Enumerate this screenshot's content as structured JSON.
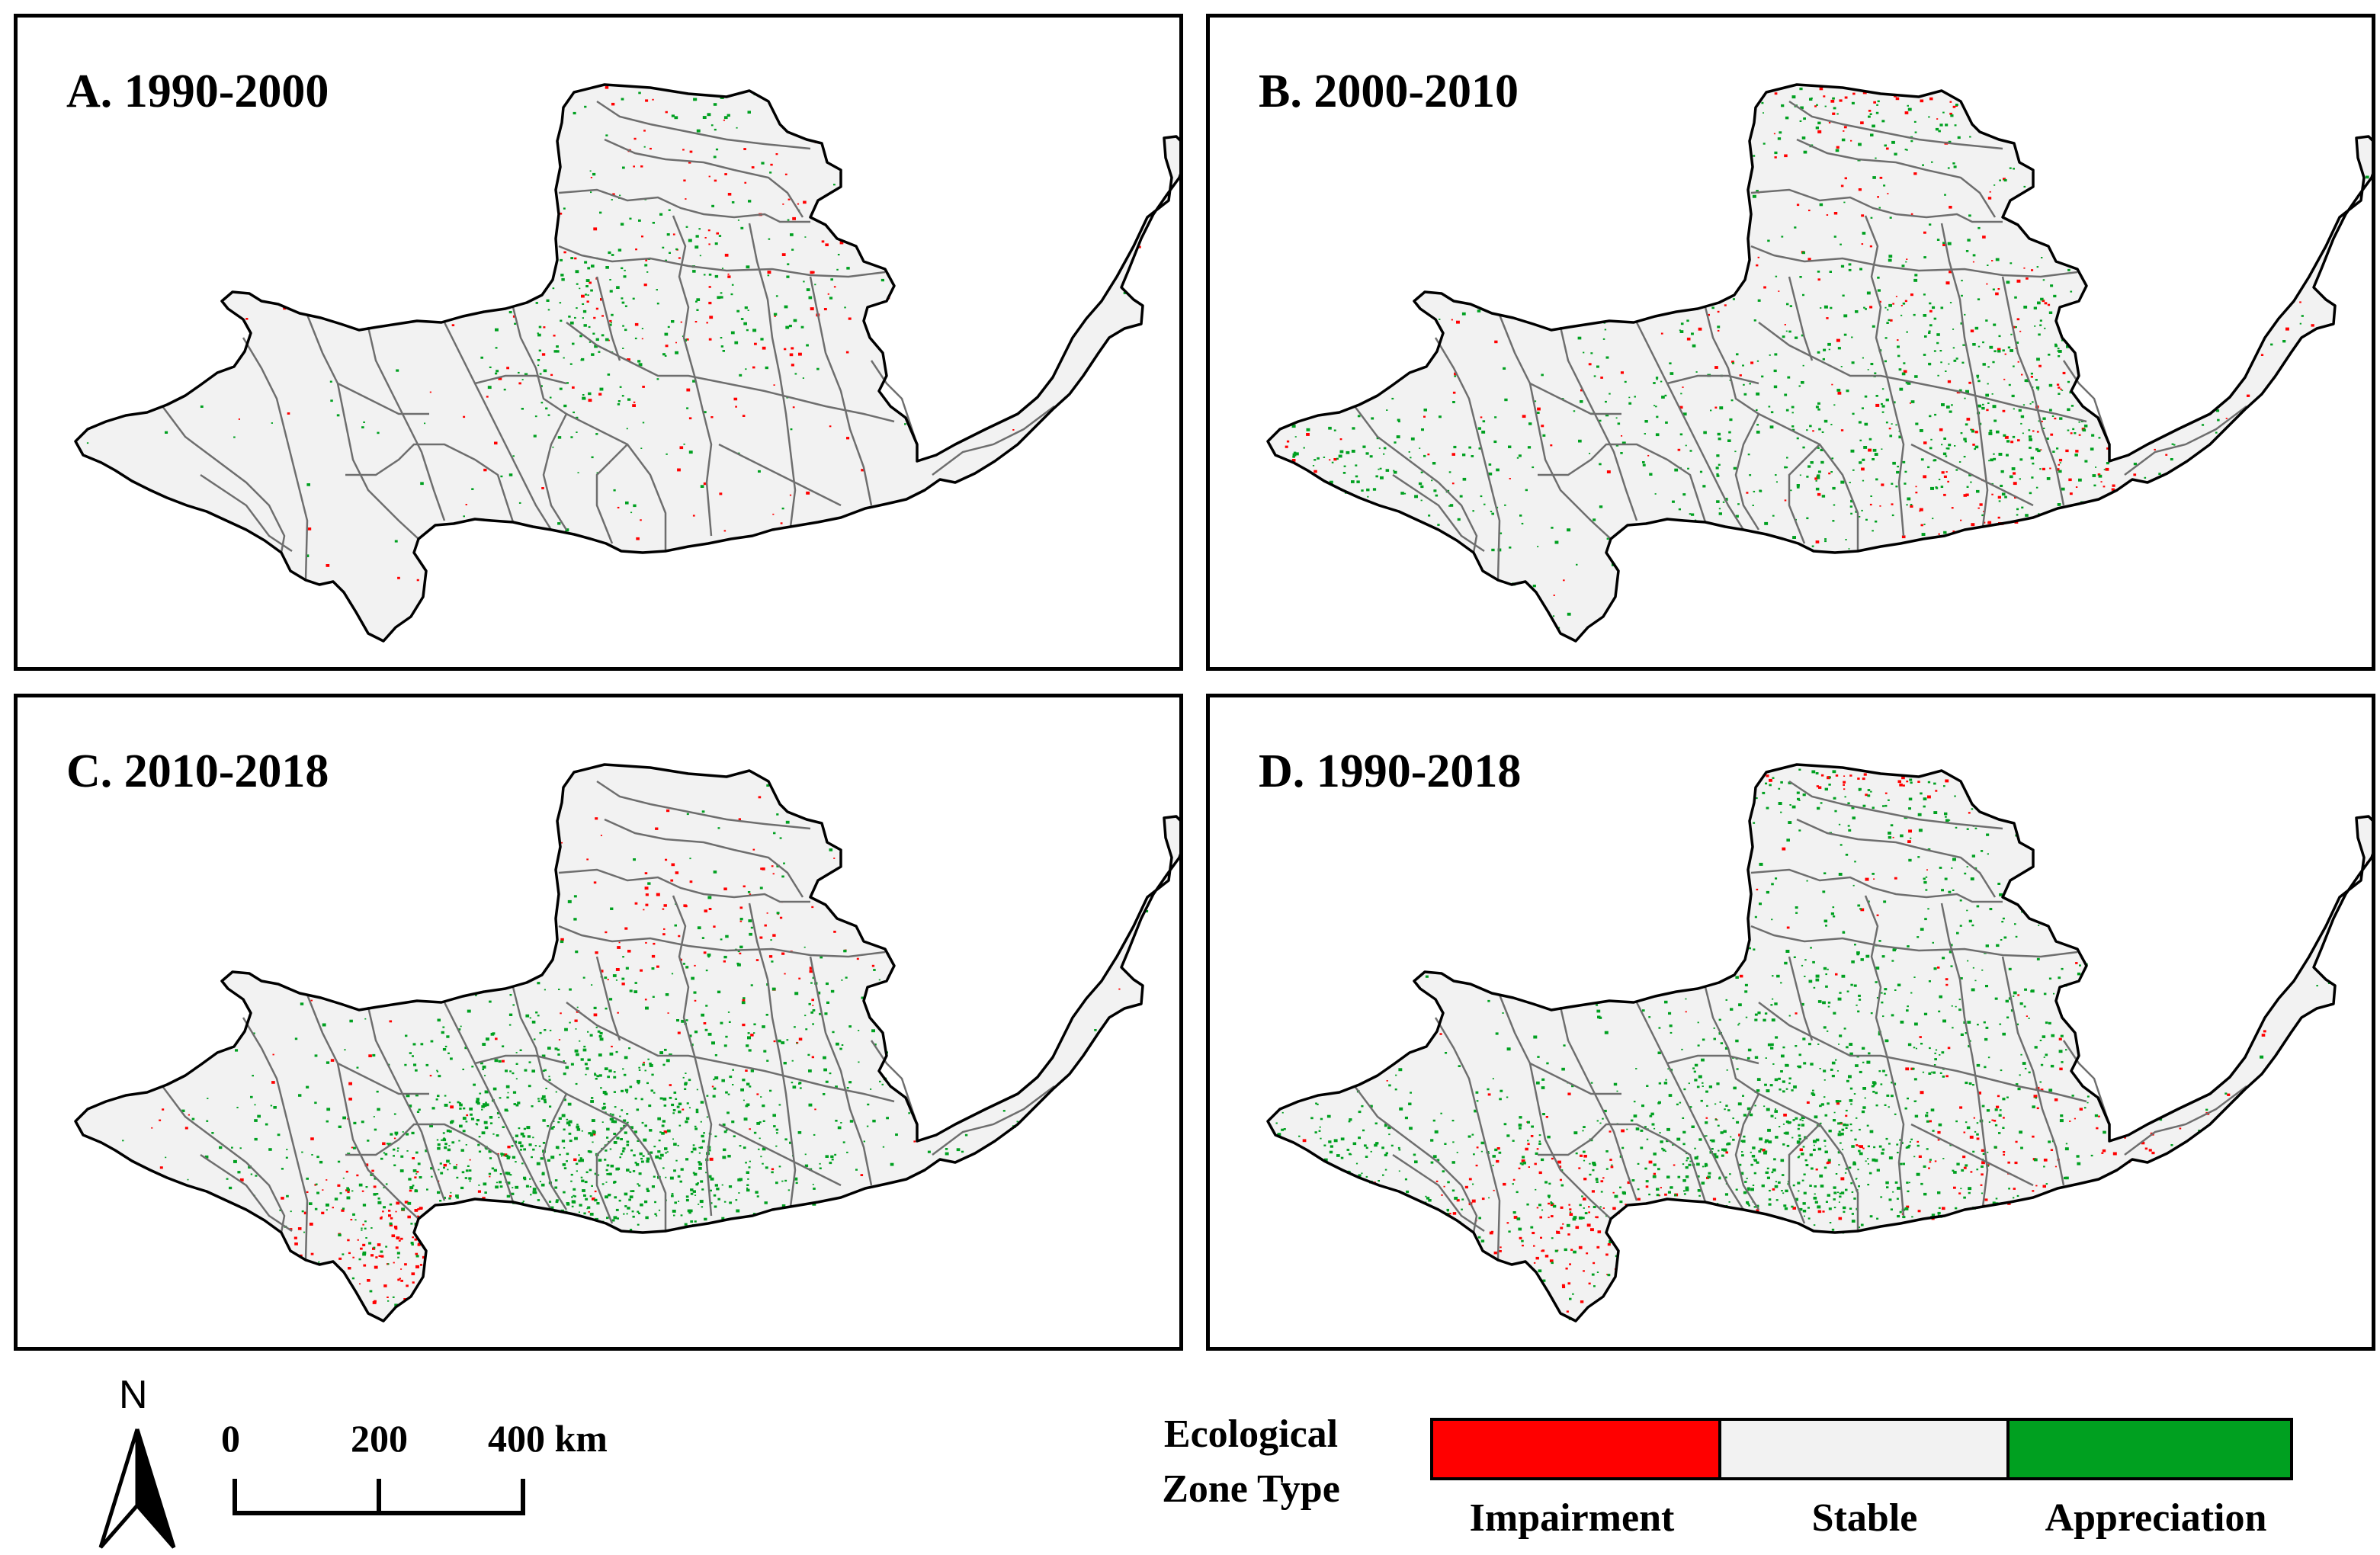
{
  "panels": [
    {
      "id": "A",
      "title": "A. 1990-2000"
    },
    {
      "id": "B",
      "title": "B. 2000-2010"
    },
    {
      "id": "C",
      "title": "C. 2010-2018"
    },
    {
      "id": "D",
      "title": "D. 1990-2018"
    }
  ],
  "north_arrow": {
    "label": "N"
  },
  "scale_bar": {
    "ticks": [
      "0",
      "200",
      "400 km"
    ]
  },
  "legend": {
    "title_line1": "Ecological",
    "title_line2": "Zone Type",
    "items": [
      {
        "label": "Impairment",
        "color": "#ff0000"
      },
      {
        "label": "Stable",
        "color": "#f2f2f2"
      },
      {
        "label": "Appreciation",
        "color": "#00a020"
      }
    ]
  },
  "colors": {
    "impairment": "#ff0000",
    "stable": "#f2f2f2",
    "appreciation": "#00a020",
    "boundary": "#6e6e6e",
    "outline": "#000000"
  }
}
